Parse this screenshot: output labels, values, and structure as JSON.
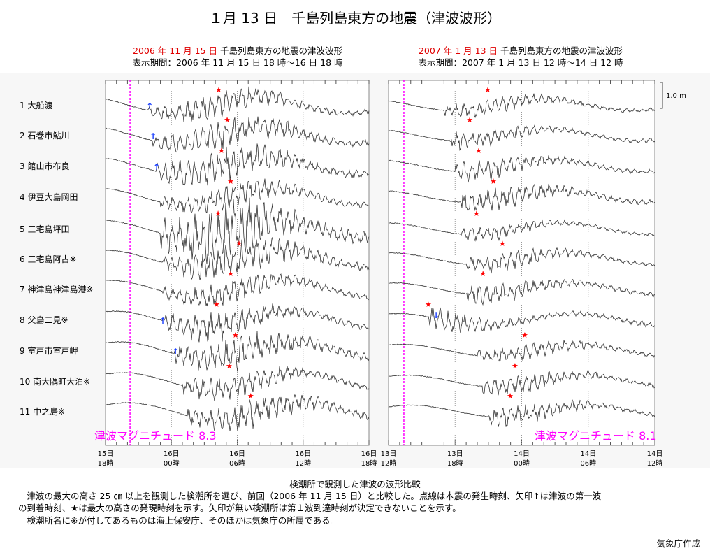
{
  "title": "１月 13 日　千島列島東方の地震（津波波形）",
  "panels": [
    {
      "date": "2006 年 11 月 15 日",
      "event": "千島列島東方の地震の津波波形",
      "period": "表示期間：2006 年 11 月 15 日 18 時～16 日 18 時",
      "start": "2006-11-15T18:00",
      "end": "2006-11-16T18:00",
      "quake": "2006-11-15T20:14",
      "magnitude": "津波マグニチュード 8.3",
      "ticks": [
        [
          "15日",
          "18時"
        ],
        [
          "16日",
          "00時"
        ],
        [
          "16日",
          "06時"
        ],
        [
          "16日",
          "12時"
        ],
        [
          "16日",
          "18時"
        ]
      ],
      "arrivals": [
        [
          "2006-11-15T22:01",
          0
        ],
        [
          "2006-11-15T22:20",
          1
        ],
        [
          "2006-11-15T22:39",
          2
        ],
        [
          "2006-11-15T23:13",
          7
        ],
        [
          "2006-11-16T00:22",
          8
        ]
      ],
      "maxima": [
        "2006-11-16T04:19",
        "2006-11-16T05:05",
        "2006-11-16T04:34",
        "2006-11-16T05:24",
        "2006-11-16T04:15",
        "2006-11-16T06:10",
        "2006-11-16T05:24",
        "2006-11-16T04:07",
        "2006-11-16T05:50",
        "2006-11-16T05:16",
        "2006-11-16T07:14"
      ]
    },
    {
      "date": "2007 年 1 月 13 日",
      "event": "千島列島東方の地震の津波波形",
      "period": "表示期間：2007 年 1 月 13 日 12 時～14 日 12 時",
      "start": "2007-01-13T12:00",
      "end": "2007-01-14T12:00",
      "quake": "2007-01-13T13:23",
      "magnitude": "津波マグニチュード 8.1",
      "ticks": [
        [
          "13日",
          "12時"
        ],
        [
          "13日",
          "18時"
        ],
        [
          "14日",
          "00時"
        ],
        [
          "14日",
          "06時"
        ],
        [
          "14日",
          "12時"
        ]
      ],
      "arrivals": [
        [
          "2007-01-13T16:17",
          7
        ]
      ],
      "maxima": [
        "2007-01-13T20:57",
        "2007-01-13T19:19",
        "2007-01-13T20:08",
        "2007-01-13T21:27",
        "2007-01-13T19:56",
        "2007-01-13T22:16",
        "2007-01-13T20:31",
        "2007-01-13T15:35",
        "2007-01-14T00:17",
        "2007-01-13T23:24",
        "2007-01-13T22:58"
      ]
    }
  ],
  "stations": [
    "1 大船渡",
    "2 石巻市鮎川",
    "3 館山市布良",
    "4 伊豆大島岡田",
    "5 三宅島坪田",
    "6 三宅島阿古※",
    "7 神津島神津島港※",
    "8 父島二見※",
    "9 室戸市室戸岬",
    "10 南大隅町大泊※",
    "11 中之島※"
  ],
  "scale_label": "1.0 m",
  "colors": {
    "quake_line": "#ff00ff",
    "arrow": "#1a3fff",
    "star": "#ff0000",
    "date_text": "#e00000"
  },
  "footer": {
    "caption": "検潮所で観測した津波の波形比較",
    "line1": "　津波の最大の高さ 25 ㎝ 以上を観測した検潮所を選び、前回（2006 年 11 月 15 日）と比較した。点線は本震の発生時刻、矢印↑は津波の第一波",
    "line2": "の到着時刻、★は最大の高さの発現時刻を示す。矢印が無い検潮所は第１波到達時刻が決定できないことを示す。",
    "line3": "　検潮所名に※が付してあるものは海上保安庁、そのほかは気象庁の所属である。",
    "credit": "気象庁作成"
  }
}
